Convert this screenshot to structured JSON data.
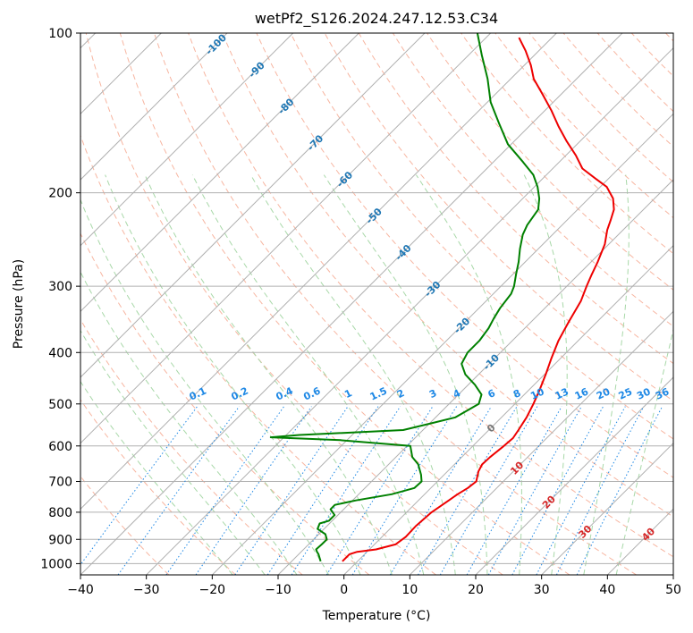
{
  "chart_data": {
    "type": "line",
    "diagram": "skew-t log-p",
    "title": "wetPf2_S126.2024.247.12.53.C34",
    "xlabel": "Temperature (°C)",
    "ylabel": "Pressure (hPa)",
    "xlim": [
      -40,
      50
    ],
    "ylim": [
      1050,
      100
    ],
    "yscale": "log",
    "grid": true,
    "x_ticks": [
      -40,
      -30,
      -20,
      -10,
      0,
      10,
      20,
      30,
      40,
      50
    ],
    "x_tick_labels": [
      "−40",
      "−30",
      "−20",
      "−10",
      "0",
      "10",
      "20",
      "30",
      "40",
      "50"
    ],
    "y_ticks": [
      100,
      200,
      300,
      400,
      500,
      600,
      700,
      800,
      900,
      1000
    ],
    "y_tick_labels": [
      "100",
      "200",
      "300",
      "400",
      "500",
      "600",
      "700",
      "800",
      "900",
      "1000"
    ],
    "isotherm_labels": [
      "-100",
      "-90",
      "-80",
      "-70",
      "-60",
      "-50",
      "-40",
      "-30",
      "-20",
      "-10",
      "0",
      "10",
      "20",
      "30",
      "40"
    ],
    "mixing_ratio_labels": [
      "0.1",
      "0.2",
      "0.4",
      "0.6",
      "1",
      "1.5",
      "2",
      "3",
      "4",
      "6",
      "8",
      "10",
      "13",
      "16",
      "20",
      "25",
      "30",
      "36"
    ],
    "series": [
      {
        "color": "#ee0000",
        "points": [
          [
            990,
            -2.3
          ],
          [
            960,
            -2.3
          ],
          [
            950,
            -1.5
          ],
          [
            940,
            1.0
          ],
          [
            920,
            3.2
          ],
          [
            890,
            3.6
          ],
          [
            850,
            3.5
          ],
          [
            800,
            3.8
          ],
          [
            760,
            4.6
          ],
          [
            740,
            5.0
          ],
          [
            720,
            5.6
          ],
          [
            700,
            5.9
          ],
          [
            685,
            5.3
          ],
          [
            670,
            4.7
          ],
          [
            650,
            4.2
          ],
          [
            630,
            4.3
          ],
          [
            600,
            4.7
          ],
          [
            580,
            4.9
          ],
          [
            560,
            4.5
          ],
          [
            530,
            3.8
          ],
          [
            500,
            2.8
          ],
          [
            470,
            1.6
          ],
          [
            440,
            0.2
          ],
          [
            410,
            -1.4
          ],
          [
            380,
            -3.0
          ],
          [
            350,
            -4.3
          ],
          [
            320,
            -5.6
          ],
          [
            300,
            -7.0
          ],
          [
            285,
            -8.0
          ],
          [
            270,
            -9.0
          ],
          [
            250,
            -10.6
          ],
          [
            235,
            -12.4
          ],
          [
            225,
            -13.4
          ],
          [
            215,
            -14.5
          ],
          [
            205,
            -16.3
          ],
          [
            195,
            -19.0
          ],
          [
            188,
            -22.0
          ],
          [
            180,
            -25.5
          ],
          [
            170,
            -28.5
          ],
          [
            160,
            -32.0
          ],
          [
            150,
            -35.5
          ],
          [
            140,
            -39.0
          ],
          [
            130,
            -43.0
          ],
          [
            122,
            -46.5
          ],
          [
            115,
            -49.0
          ],
          [
            108,
            -52.0
          ],
          [
            102,
            -55.0
          ]
        ]
      },
      {
        "color": "#008000",
        "points": [
          [
            990,
            -5.6
          ],
          [
            975,
            -6.3
          ],
          [
            960,
            -7.0
          ],
          [
            950,
            -7.6
          ],
          [
            940,
            -8.1
          ],
          [
            920,
            -8.0
          ],
          [
            900,
            -8.0
          ],
          [
            880,
            -9.0
          ],
          [
            860,
            -11.0
          ],
          [
            840,
            -11.5
          ],
          [
            830,
            -10.5
          ],
          [
            810,
            -10.5
          ],
          [
            790,
            -12.0
          ],
          [
            775,
            -12.0
          ],
          [
            760,
            -9.5
          ],
          [
            740,
            -5.0
          ],
          [
            720,
            -2.5
          ],
          [
            700,
            -2.4
          ],
          [
            680,
            -3.5
          ],
          [
            650,
            -5.5
          ],
          [
            630,
            -7.5
          ],
          [
            600,
            -9.5
          ],
          [
            585,
            -21.0
          ],
          [
            578,
            -32.0
          ],
          [
            572,
            -28.0
          ],
          [
            560,
            -13.0
          ],
          [
            545,
            -10.0
          ],
          [
            530,
            -7.0
          ],
          [
            500,
            -5.5
          ],
          [
            480,
            -6.5
          ],
          [
            460,
            -9.0
          ],
          [
            440,
            -12.0
          ],
          [
            420,
            -14.2
          ],
          [
            400,
            -15.0
          ],
          [
            380,
            -15.0
          ],
          [
            360,
            -15.5
          ],
          [
            345,
            -16.2
          ],
          [
            330,
            -16.8
          ],
          [
            310,
            -17.3
          ],
          [
            300,
            -18.0
          ],
          [
            285,
            -19.5
          ],
          [
            270,
            -21.0
          ],
          [
            255,
            -22.8
          ],
          [
            240,
            -24.5
          ],
          [
            230,
            -25.3
          ],
          [
            215,
            -26.0
          ],
          [
            205,
            -27.5
          ],
          [
            195,
            -29.5
          ],
          [
            185,
            -32.0
          ],
          [
            175,
            -35.5
          ],
          [
            162,
            -40.5
          ],
          [
            148,
            -45.0
          ],
          [
            135,
            -49.5
          ],
          [
            122,
            -53.5
          ],
          [
            110,
            -58.0
          ],
          [
            100,
            -62.0
          ]
        ]
      }
    ]
  }
}
